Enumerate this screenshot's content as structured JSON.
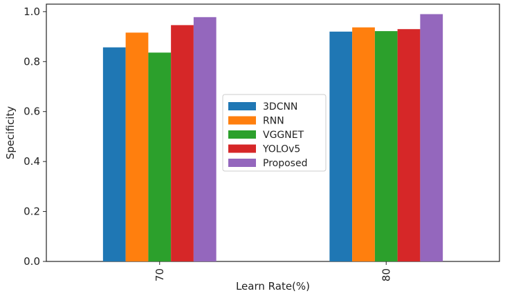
{
  "chart_data": {
    "type": "bar",
    "xlabel": "Learn Rate(%)",
    "ylabel": "Specificity",
    "categories": [
      "70",
      "80"
    ],
    "ylim": [
      0,
      1.03
    ],
    "yticks": [
      "0.0",
      "0.2",
      "0.4",
      "0.6",
      "0.8",
      "1.0"
    ],
    "grid": false,
    "legend_position": "center",
    "series": [
      {
        "name": "3DCNN",
        "color": "#1f77b4",
        "values": [
          0.857,
          0.92
        ]
      },
      {
        "name": "RNN",
        "color": "#ff7f0e",
        "values": [
          0.916,
          0.937
        ]
      },
      {
        "name": "VGGNET",
        "color": "#2ca02c",
        "values": [
          0.836,
          0.922
        ]
      },
      {
        "name": "YOLOv5",
        "color": "#d62728",
        "values": [
          0.946,
          0.93
        ]
      },
      {
        "name": "Proposed",
        "color": "#9467bd",
        "values": [
          0.978,
          0.99
        ]
      }
    ]
  }
}
